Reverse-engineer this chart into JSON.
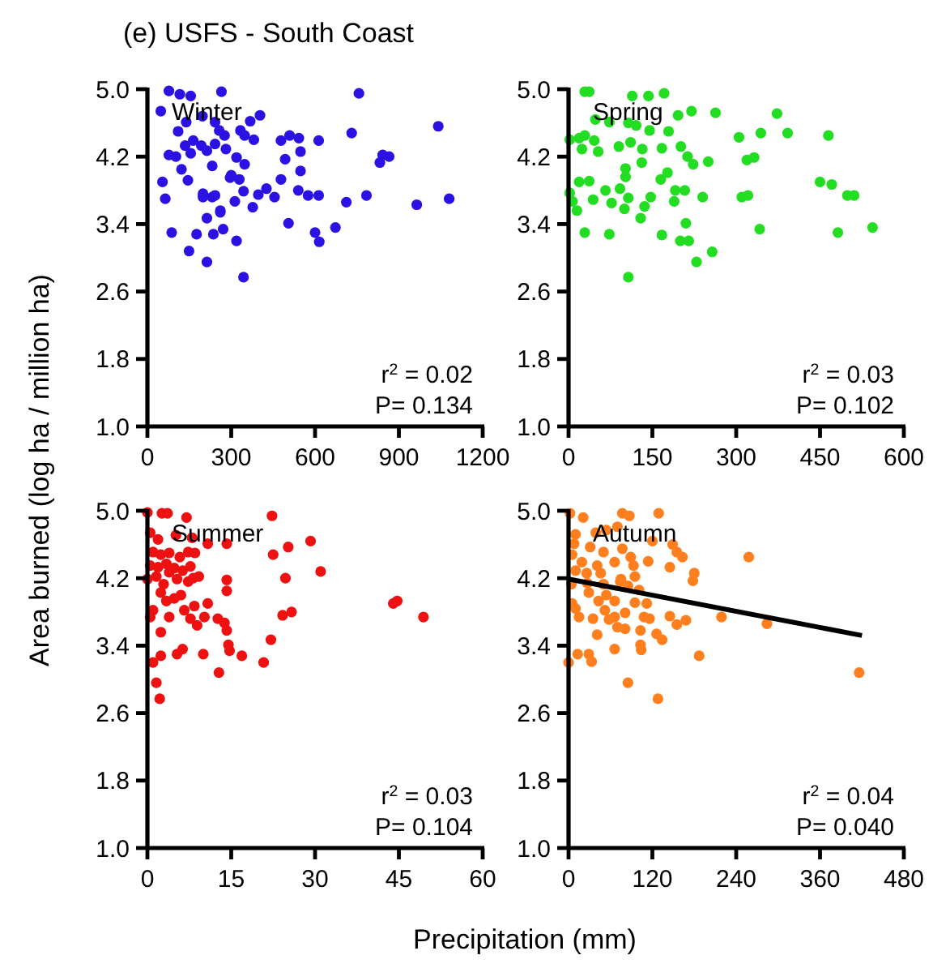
{
  "chart_data": [
    {
      "type": "scatter",
      "title": "(e)  USFS - South Coast",
      "ylabel": "Area burned (log ha / million ha)",
      "marker": "circle",
      "annotations": [
        "Winter",
        "r$^{2}$ = 0.02",
        "P=  0.134"
      ],
      "xlim": [
        0,
        1200
      ],
      "xticks": [
        0,
        300,
        600,
        900,
        1200
      ],
      "ylim": [
        1,
        5
      ],
      "yticks": [
        {
          "value": 1,
          "label": "1.0"
        },
        {
          "value": 1.8,
          "label": "1.8"
        },
        {
          "value": 2.6,
          "label": "2.6"
        },
        {
          "value": 3.4,
          "label": "3.4"
        },
        {
          "value": 4.2,
          "label": "4.2"
        },
        {
          "value": 5,
          "label": "5.0"
        }
      ],
      "series": [
        {
          "color": "#2b12e3",
          "x": [
            48,
            77,
            116,
            155,
            265,
            197,
            139,
            110,
            242,
            257,
            276,
            333,
            368,
            403,
            381,
            348,
            135,
            164,
            193,
            213,
            242,
            281,
            77,
            102,
            155,
            232,
            319,
            348,
            122,
            145,
            54,
            64,
            199,
            232,
            261,
            300,
            329,
            344,
            313,
            377,
            397,
            426,
            455,
            478,
            509,
            542,
            548,
            493,
            478,
            548,
            540,
            575,
            613,
            613,
            505,
            600,
            615,
            673,
            712,
            784,
            731,
            757,
            832,
            842,
            865,
            964,
            1041,
            1080,
            87,
            149,
            176,
            213,
            213,
            236,
            271,
            261,
            319,
            344,
            199,
            242,
            296
          ],
          "values": [
            4.74,
            4.98,
            4.94,
            4.92,
            4.97,
            4.68,
            4.61,
            4.5,
            4.61,
            4.51,
            4.45,
            4.51,
            4.62,
            4.69,
            4.4,
            4.45,
            4.33,
            4.39,
            4.33,
            4.27,
            4.35,
            4.29,
            4.22,
            4.2,
            4.24,
            4.09,
            4.19,
            4.11,
            4.05,
            3.92,
            3.9,
            3.7,
            3.76,
            3.72,
            3.54,
            3.98,
            3.93,
            3.79,
            3.67,
            3.6,
            3.75,
            3.82,
            3.72,
            4.39,
            4.45,
            4.42,
            4.26,
            4.17,
            3.93,
            4.03,
            3.8,
            3.74,
            3.74,
            4.39,
            3.41,
            3.3,
            3.19,
            3.36,
            3.66,
            3.74,
            4.48,
            4.95,
            4.13,
            4.22,
            4.2,
            3.63,
            4.56,
            3.7,
            3.3,
            3.08,
            3.28,
            3.47,
            2.95,
            3.28,
            3.34,
            3.56,
            3.2,
            2.77,
            3.72,
            3.74,
            3.95
          ]
        }
      ]
    },
    {
      "type": "scatter",
      "marker": "circle",
      "annotations": [
        "Spring",
        "r$^{2}$ = 0.03",
        "P=  0.102"
      ],
      "xlim": [
        0,
        600
      ],
      "xticks": [
        0,
        150,
        300,
        450,
        600
      ],
      "ylim": [
        1,
        5
      ],
      "yticks": [
        {
          "value": 1,
          "label": "1.0"
        },
        {
          "value": 1.8,
          "label": "1.8"
        },
        {
          "value": 2.6,
          "label": "2.6"
        },
        {
          "value": 3.4,
          "label": "3.4"
        },
        {
          "value": 4.2,
          "label": "4.2"
        },
        {
          "value": 5,
          "label": "5.0"
        }
      ],
      "series": [
        {
          "color": "#22dd22",
          "x": [
            29,
            37,
            114,
            143,
            171,
            196,
            220,
            263,
            373,
            48,
            73,
            107,
            121,
            145,
            179,
            2,
            19,
            29,
            46,
            24,
            53,
            90,
            111,
            132,
            167,
            201,
            213,
            223,
            250,
            305,
            344,
            392,
            465,
            319,
            332,
            102,
            131,
            165,
            177,
            19,
            37,
            2,
            7,
            15,
            44,
            66,
            77,
            92,
            107,
            100,
            136,
            129,
            147,
            189,
            191,
            208,
            240,
            310,
            321,
            450,
            471,
            499,
            511,
            342,
            482,
            544,
            29,
            73,
            167,
            210,
            200,
            215,
            257,
            229,
            107,
            102
          ],
          "values": [
            4.97,
            4.97,
            4.92,
            4.92,
            4.95,
            4.69,
            4.74,
            4.72,
            4.71,
            4.64,
            4.61,
            4.6,
            4.57,
            4.51,
            4.5,
            4.4,
            4.42,
            4.45,
            4.39,
            4.29,
            4.26,
            4.32,
            4.37,
            4.29,
            4.3,
            4.32,
            4.2,
            4.11,
            4.14,
            4.43,
            4.48,
            4.48,
            4.45,
            4.16,
            4.19,
            4.06,
            4.13,
            3.93,
            4.01,
            3.9,
            3.91,
            3.77,
            3.67,
            3.56,
            3.69,
            3.8,
            3.65,
            3.82,
            3.71,
            3.58,
            3.61,
            3.47,
            3.72,
            3.67,
            3.8,
            3.8,
            3.72,
            3.72,
            3.74,
            3.9,
            3.87,
            3.74,
            3.74,
            3.34,
            3.3,
            3.36,
            3.3,
            3.28,
            3.27,
            3.41,
            3.2,
            3.2,
            3.07,
            2.95,
            2.77,
            3.96
          ]
        }
      ]
    },
    {
      "type": "scatter",
      "xlabel": "Precipitation (mm)",
      "marker": "circle",
      "annotations": [
        "Summer",
        "r$^{2}$ = 0.03",
        "P=  0.104"
      ],
      "xlim": [
        0,
        60
      ],
      "xticks": [
        0,
        15,
        30,
        45,
        60
      ],
      "ylim": [
        1,
        5
      ],
      "yticks": [
        {
          "value": 1,
          "label": "1.0"
        },
        {
          "value": 1.8,
          "label": "1.8"
        },
        {
          "value": 2.6,
          "label": "2.6"
        },
        {
          "value": 3.4,
          "label": "3.4"
        },
        {
          "value": 4.2,
          "label": "4.2"
        },
        {
          "value": 5,
          "label": "5.0"
        }
      ],
      "series": [
        {
          "color": "#ee1111",
          "x": [
            0,
            2.6,
            3.6,
            7,
            22.3,
            0.5,
            1.9,
            5.1,
            8,
            10.8,
            14.2,
            25.2,
            29.2,
            22.5,
            31,
            24.7,
            1,
            2.4,
            3.9,
            5.8,
            7.3,
            8.5,
            0.5,
            1.9,
            3.4,
            4.8,
            6.3,
            7.7,
            0,
            1.6,
            2.9,
            3.9,
            5.3,
            7.3,
            8.2,
            9.2,
            14.2,
            14.2,
            2.4,
            3.4,
            4.8,
            6,
            8.4,
            10.8,
            1,
            0.5,
            3.9,
            6.6,
            7.7,
            8.9,
            10.2,
            12.6,
            13.8,
            14.2,
            24.2,
            25.8,
            44,
            44.7,
            49.4,
            2.4,
            2.4,
            1,
            5.3,
            6.3,
            10,
            14.5,
            14.7,
            16.9,
            22.1,
            20.8,
            12.8,
            1.6,
            2.2
          ],
          "values": [
            4.98,
            4.97,
            4.97,
            4.92,
            4.94,
            4.74,
            4.66,
            4.71,
            4.68,
            4.61,
            4.61,
            4.57,
            4.64,
            4.48,
            4.28,
            4.2,
            4.51,
            4.48,
            4.5,
            4.45,
            4.51,
            4.5,
            4.35,
            4.33,
            4.37,
            4.32,
            4.29,
            4.34,
            4.19,
            4.22,
            4.13,
            4.27,
            4.19,
            4.16,
            4.2,
            4.22,
            4.18,
            4.05,
            4.03,
            3.93,
            3.96,
            4,
            3.87,
            3.9,
            3.82,
            3.74,
            3.74,
            3.82,
            3.72,
            3.64,
            3.74,
            3.72,
            3.67,
            3.58,
            3.76,
            3.8,
            3.9,
            3.93,
            3.74,
            3.56,
            3.28,
            3.2,
            3.3,
            3.36,
            3.3,
            3.41,
            3.34,
            3.28,
            3.47,
            3.2,
            3.08,
            2.96,
            2.77
          ]
        }
      ]
    },
    {
      "type": "scatter",
      "marker": "circle",
      "annotations": [
        "Autumn",
        "r$^{2}$ = 0.04",
        "P=  0.040"
      ],
      "xlim": [
        0,
        480
      ],
      "xticks": [
        0,
        120,
        240,
        360,
        480
      ],
      "ylim": [
        1,
        5
      ],
      "yticks": [
        {
          "value": 1,
          "label": "1.0"
        },
        {
          "value": 1.8,
          "label": "1.8"
        },
        {
          "value": 2.6,
          "label": "2.6"
        },
        {
          "value": 3.4,
          "label": "3.4"
        },
        {
          "value": 4.2,
          "label": "4.2"
        },
        {
          "value": 5,
          "label": "5.0"
        }
      ],
      "series": [
        {
          "color": "#ff7f1e",
          "x": [
            2,
            21,
            77,
            87,
            129,
            10,
            39,
            54,
            70,
            120,
            149,
            8,
            31,
            50,
            77,
            89,
            114,
            155,
            163,
            258,
            5,
            19,
            41,
            66,
            93,
            145,
            180,
            178,
            10,
            26,
            46,
            75,
            95,
            4,
            27,
            50,
            74,
            85,
            101,
            29,
            43,
            54,
            66,
            95,
            112,
            5,
            10,
            15,
            35,
            52,
            58,
            66,
            81,
            70,
            81,
            108,
            116,
            145,
            155,
            168,
            219,
            284,
            103,
            126,
            134,
            41,
            103,
            104,
            66,
            13,
            29,
            33,
            0,
            187,
            85,
            128,
            416
          ],
          "values": [
            4.97,
            4.92,
            4.97,
            4.94,
            4.97,
            4.72,
            4.74,
            4.77,
            4.81,
            4.64,
            4.6,
            4.61,
            4.57,
            4.51,
            4.55,
            4.45,
            4.4,
            4.51,
            4.45,
            4.45,
            4.48,
            4.39,
            4.35,
            4.39,
            4.35,
            4.33,
            4.26,
            4.17,
            4.29,
            4.26,
            4.26,
            4.19,
            4.22,
            4.13,
            4.14,
            4.13,
            4.16,
            4.11,
            4.06,
            4.03,
            3.93,
            4,
            3.93,
            3.91,
            3.9,
            3.9,
            3.84,
            3.74,
            3.72,
            3.82,
            3.71,
            3.74,
            3.79,
            3.62,
            3.6,
            3.74,
            3.72,
            3.75,
            3.65,
            3.7,
            3.74,
            3.66,
            3.58,
            3.54,
            3.47,
            3.53,
            3.41,
            3.35,
            3.36,
            3.3,
            3.3,
            3.21,
            3.2,
            3.28,
            2.96,
            2.77,
            3.08
          ]
        },
        {
          "type": "line",
          "marker": "none",
          "color": "#000000",
          "x": [
            0,
            420
          ],
          "values": [
            4.19,
            3.52
          ]
        }
      ]
    }
  ]
}
